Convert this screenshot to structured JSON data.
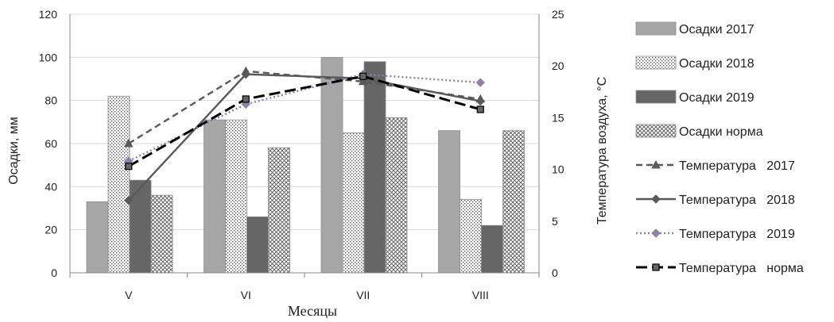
{
  "chart_data": {
    "type": "bar",
    "categories": [
      "V",
      "VI",
      "VII",
      "VIII"
    ],
    "xlabel": "Месяцы",
    "ylabel": "Осадки, мм",
    "y2label": "Температура  воздуха, °С",
    "ylim": [
      0,
      120
    ],
    "y2lim": [
      0,
      25
    ],
    "yticks": [
      "0",
      "20",
      "40",
      "60",
      "80",
      "100",
      "120"
    ],
    "y2ticks": [
      "0",
      "5",
      "10",
      "15",
      "20",
      "25"
    ],
    "grid": true,
    "legend": "right",
    "bar_series": [
      {
        "name": "Осадки 2017",
        "values": [
          33,
          71,
          100,
          66
        ],
        "fill": "#a6a6a6",
        "pattern": "solid"
      },
      {
        "name": "Осадки 2018",
        "values": [
          82,
          71,
          65,
          34
        ],
        "fill": "#ffffff",
        "pattern": "dots"
      },
      {
        "name": "Осадки 2019",
        "values": [
          43,
          26,
          98,
          22
        ],
        "fill": "#666666",
        "pattern": "solid"
      },
      {
        "name": "Осадки норма",
        "values": [
          36,
          58,
          72,
          66
        ],
        "fill": "#ffffff",
        "pattern": "crosshatch"
      }
    ],
    "line_series": [
      {
        "name": "Температура   2017",
        "values": [
          12.5,
          19.5,
          18.5,
          16.8
        ],
        "color": "#595959",
        "dash": "8,5",
        "marker": "triangle"
      },
      {
        "name": "Температура   2018",
        "values": [
          7.0,
          19.2,
          18.8,
          16.6
        ],
        "color": "#595959",
        "dash": "",
        "marker": "diamond"
      },
      {
        "name": "Температура   2019",
        "values": [
          10.8,
          16.3,
          19.2,
          18.4
        ],
        "color": "#8e82a8",
        "dash": "2,3",
        "marker": "diamond"
      },
      {
        "name": "Температура   норма",
        "values": [
          10.3,
          16.8,
          19.0,
          15.8
        ],
        "color": "#000000",
        "dash": "14,6",
        "marker": "square"
      }
    ]
  }
}
